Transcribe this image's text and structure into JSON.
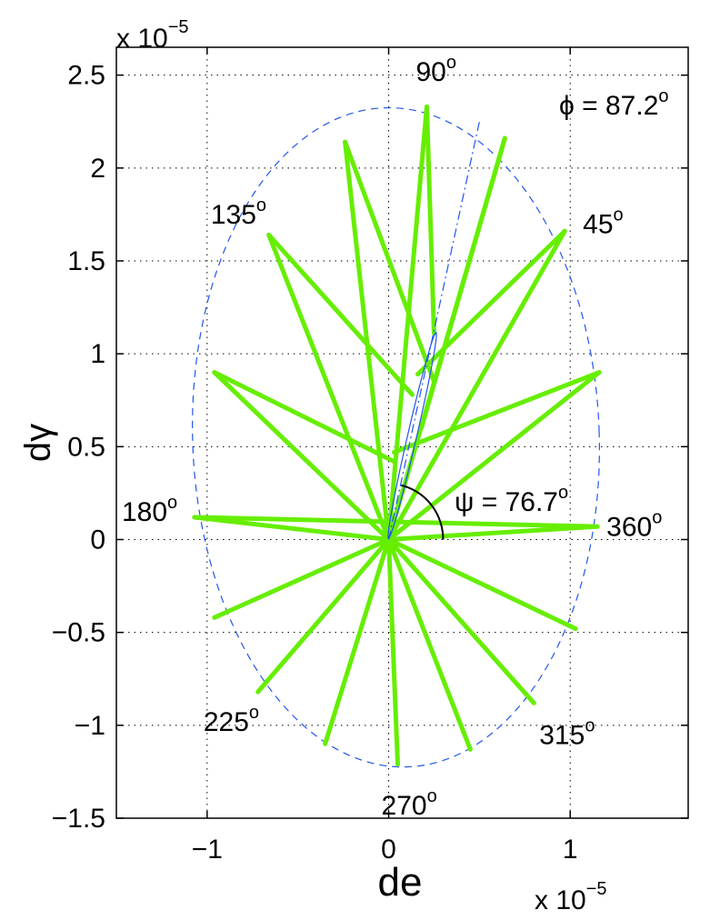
{
  "chart_data": {
    "type": "line",
    "xlabel": "de",
    "ylabel": "dγ",
    "x_exponent_label": "x 10",
    "x_exponent_power": "−5",
    "y_exponent_label": "x 10",
    "y_exponent_power": "−5",
    "xlim": [
      -1.5e-05,
      1.65e-05
    ],
    "ylim": [
      -1.5e-05,
      2.65e-05
    ],
    "xticks": [
      {
        "value": -1e-05,
        "label": "−1"
      },
      {
        "value": 0,
        "label": "0"
      },
      {
        "value": 1e-05,
        "label": "1"
      }
    ],
    "yticks": [
      {
        "value": -1.5e-05,
        "label": "−1.5"
      },
      {
        "value": -1e-05,
        "label": "−1"
      },
      {
        "value": -5e-06,
        "label": "−0.5"
      },
      {
        "value": 0,
        "label": "0"
      },
      {
        "value": 5e-06,
        "label": "0.5"
      },
      {
        "value": 1e-05,
        "label": "1"
      },
      {
        "value": 1.5e-05,
        "label": "1.5"
      },
      {
        "value": 2e-05,
        "label": "2"
      },
      {
        "value": 2.5e-05,
        "label": "2.5"
      }
    ],
    "grid": true,
    "phi_label": "ϕ = 87.2",
    "psi_label": "ψ = 76.7",
    "degree_mark": "o",
    "colors": {
      "segments": "#66ee00",
      "envelope": "#2255ee",
      "axis": "#000000",
      "grid": "#000000",
      "arc": "#000000"
    },
    "segments": [
      [
        [
          0,
          0
        ],
        [
          -1.07e-05,
          1.2e-06
        ]
      ],
      [
        [
          -1.07e-05,
          1.2e-06
        ],
        [
          1.15e-05,
          7e-07
        ]
      ],
      [
        [
          1.15e-05,
          7e-07
        ],
        [
          0,
          0
        ]
      ],
      [
        [
          0,
          0
        ],
        [
          -9.6e-06,
          9e-06
        ]
      ],
      [
        [
          -9.6e-06,
          9e-06
        ],
        [
          3e-07,
          4.2e-06
        ]
      ],
      [
        [
          0,
          0
        ],
        [
          1.16e-05,
          9e-06
        ]
      ],
      [
        [
          1.16e-05,
          9e-06
        ],
        [
          3e-07,
          4.7e-06
        ]
      ],
      [
        [
          0,
          0
        ],
        [
          -6.6e-06,
          1.64e-05
        ]
      ],
      [
        [
          -6.6e-06,
          1.64e-05
        ],
        [
          1.3e-06,
          7.8e-06
        ]
      ],
      [
        [
          0,
          0
        ],
        [
          9.7e-06,
          1.66e-05
        ]
      ],
      [
        [
          9.7e-06,
          1.66e-05
        ],
        [
          1.6e-06,
          8.9e-06
        ]
      ],
      [
        [
          0,
          0
        ],
        [
          -2.4e-06,
          2.14e-05
        ]
      ],
      [
        [
          -2.4e-06,
          2.14e-05
        ],
        [
          2.5e-06,
          8.5e-06
        ]
      ],
      [
        [
          0,
          0
        ],
        [
          6.4e-06,
          2.16e-05
        ]
      ],
      [
        [
          6.4e-06,
          2.16e-05
        ],
        [
          1.8e-06,
          6e-06
        ]
      ],
      [
        [
          0,
          0
        ],
        [
          2.1e-06,
          2.33e-05
        ]
      ],
      [
        [
          2.1e-06,
          2.33e-05
        ],
        [
          2.5e-06,
          1.11e-05
        ]
      ],
      [
        [
          0,
          0
        ],
        [
          -9.6e-06,
          -4.2e-06
        ]
      ],
      [
        [
          0,
          0
        ],
        [
          -7.2e-06,
          -8.2e-06
        ]
      ],
      [
        [
          0,
          0
        ],
        [
          -3.5e-06,
          -1.1e-05
        ]
      ],
      [
        [
          0,
          0
        ],
        [
          5e-07,
          -1.21e-05
        ]
      ],
      [
        [
          0,
          0
        ],
        [
          4.5e-06,
          -1.13e-05
        ]
      ],
      [
        [
          0,
          0
        ],
        [
          8e-06,
          -8.8e-06
        ]
      ],
      [
        [
          0,
          0
        ],
        [
          1.03e-05,
          -4.8e-06
        ]
      ]
    ],
    "envelope": {
      "center": [
        4e-07,
        5.5e-06
      ],
      "rx": 1.12e-05,
      "ry": 1.775e-05,
      "rotation_deg": -2
    },
    "dashdot_line": [
      [
        0,
        0
      ],
      [
        5e-06,
        2.25e-05
      ]
    ],
    "small_ellipse": {
      "center": [
        1.3e-06,
        5.6e-06
      ],
      "semi_major": 5.7e-06,
      "semi_minor": 2.5e-07,
      "angle_deg": 76.7
    },
    "psi_arc": {
      "center": [
        0,
        0
      ],
      "radius": 3e-06,
      "from_deg": 0,
      "to_deg": 76.7
    },
    "angle_labels": [
      {
        "text": "90",
        "anchor": [
          1.5e-06,
          2.47e-05
        ]
      },
      {
        "text": "45",
        "anchor": [
          1.07e-05,
          1.65e-05
        ]
      },
      {
        "text": "135",
        "anchor": [
          -9.8e-06,
          1.7e-05
        ]
      },
      {
        "text": "180",
        "anchor": [
          -1.47e-05,
          1e-06
        ]
      },
      {
        "text": "360",
        "anchor": [
          1.2e-05,
          2e-07
        ]
      },
      {
        "text": "225",
        "anchor": [
          -1.02e-05,
          -1.03e-05
        ]
      },
      {
        "text": "270",
        "anchor": [
          -4e-07,
          -1.48e-05
        ]
      },
      {
        "text": "315",
        "anchor": [
          8.3e-06,
          -1.1e-05
        ]
      }
    ]
  }
}
